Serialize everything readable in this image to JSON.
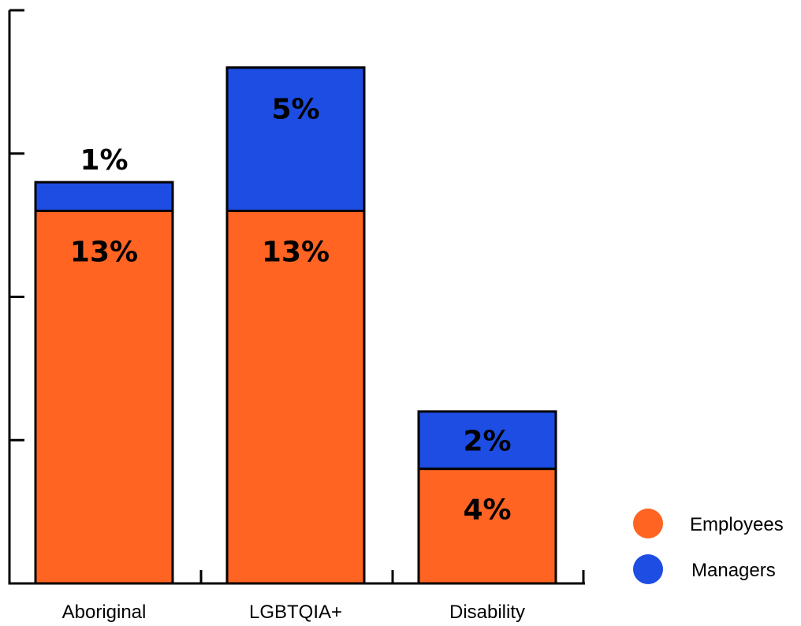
{
  "chart_data": {
    "type": "bar",
    "stacked": true,
    "categories": [
      "Aboriginal",
      "LGBTQIA+",
      "Disability"
    ],
    "series": [
      {
        "name": "Employees",
        "values": [
          13,
          13,
          4
        ],
        "labels": [
          "13%",
          "13%",
          "4%"
        ],
        "color": "#FF6422"
      },
      {
        "name": "Managers",
        "values": [
          1,
          5,
          2
        ],
        "labels": [
          "1%",
          "5%",
          "2%"
        ],
        "color": "#1D4DE3"
      }
    ],
    "ylim": [
      0,
      20
    ],
    "grid": false,
    "legend_position": "bottom-right"
  }
}
